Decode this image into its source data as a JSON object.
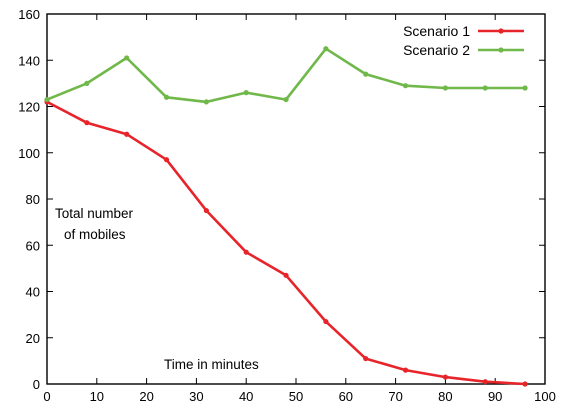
{
  "chart_data": {
    "type": "line",
    "title": "",
    "xlabel": "",
    "ylabel": "",
    "annotations": {
      "ylabel_line1": "Total number",
      "ylabel_line2": "of mobiles",
      "xlabel": "Time in minutes"
    },
    "xlim": [
      0,
      100
    ],
    "ylim": [
      0,
      160
    ],
    "xticks": [
      "0",
      "10",
      "20",
      "30",
      "40",
      "50",
      "60",
      "70",
      "80",
      "90",
      "100"
    ],
    "yticks": [
      "0",
      "20",
      "40",
      "60",
      "80",
      "100",
      "120",
      "140",
      "160"
    ],
    "grid": false,
    "legend_position": "top-right",
    "series": [
      {
        "name": "Scenario 1",
        "color": "#e8242b",
        "x": [
          0,
          8,
          16,
          24,
          32,
          40,
          48,
          56,
          64,
          72,
          80,
          88,
          96
        ],
        "y": [
          122,
          113,
          108,
          97,
          75,
          57,
          47,
          27,
          11,
          6,
          3,
          1,
          0
        ]
      },
      {
        "name": "Scenario 2",
        "color": "#70b84a",
        "x": [
          0,
          8,
          16,
          24,
          32,
          40,
          48,
          56,
          64,
          72,
          80,
          88,
          96
        ],
        "y": [
          123,
          130,
          141,
          124,
          122,
          126,
          123,
          145,
          134,
          129,
          128,
          128,
          128
        ]
      }
    ]
  }
}
